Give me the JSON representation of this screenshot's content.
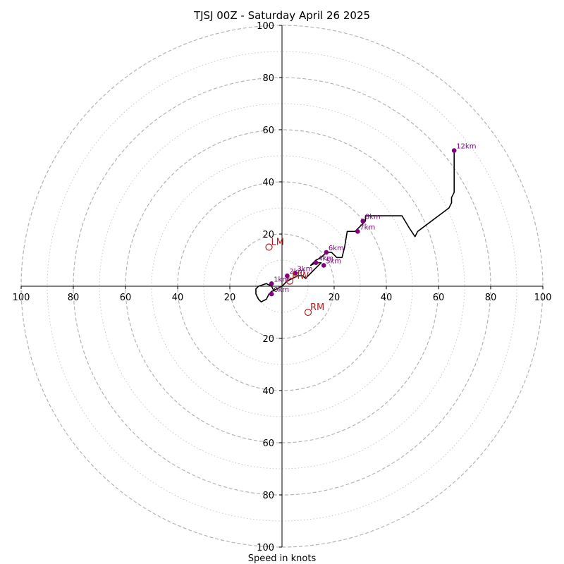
{
  "chart_data": {
    "type": "hodograph",
    "title": "TJSJ 00Z - Saturday April 26 2025",
    "xlabel": "Speed in knots",
    "ring_max": 100,
    "major_rings": [
      20,
      40,
      60,
      80,
      100
    ],
    "minor_rings": [
      10,
      30,
      50,
      70,
      90
    ],
    "tick_labels": {
      "x_left": [
        "100",
        "80",
        "60",
        "40",
        "20"
      ],
      "x_right": [
        "20",
        "40",
        "60",
        "80",
        "100"
      ],
      "y_up": [
        "20",
        "40",
        "60",
        "80",
        "100"
      ],
      "y_down": [
        "20",
        "40",
        "60",
        "80",
        "100"
      ]
    },
    "trace_color": "#000000",
    "height_marker_color": "#800080",
    "motion_marker_color": "#b22222",
    "trace": [
      [
        -3,
        -2
      ],
      [
        -4,
        0
      ],
      [
        -6,
        1
      ],
      [
        -9,
        0
      ],
      [
        -10,
        -1
      ],
      [
        -10,
        -3
      ],
      [
        -9,
        -5
      ],
      [
        -8,
        -6
      ],
      [
        -6,
        -5
      ],
      [
        -5,
        -3
      ],
      [
        -4,
        -2
      ],
      [
        -2,
        -1
      ],
      [
        0,
        0
      ],
      [
        2,
        2
      ],
      [
        4,
        3
      ],
      [
        6,
        4
      ],
      [
        8,
        4
      ],
      [
        9,
        3
      ],
      [
        11,
        5
      ],
      [
        13,
        7
      ],
      [
        14,
        8
      ],
      [
        15,
        9
      ],
      [
        13,
        9
      ],
      [
        11,
        8
      ],
      [
        13,
        10
      ],
      [
        15,
        11
      ],
      [
        17,
        13
      ],
      [
        19,
        13
      ],
      [
        21,
        11
      ],
      [
        23,
        11
      ],
      [
        24,
        15
      ],
      [
        25,
        21
      ],
      [
        28,
        21
      ],
      [
        30,
        23
      ],
      [
        32,
        25
      ],
      [
        32,
        27
      ],
      [
        34,
        27
      ],
      [
        38,
        27
      ],
      [
        42,
        27
      ],
      [
        46,
        27
      ],
      [
        49,
        22
      ],
      [
        51,
        19
      ],
      [
        52,
        21
      ],
      [
        56,
        24
      ],
      [
        60,
        27
      ],
      [
        64,
        30
      ],
      [
        65,
        32
      ],
      [
        65,
        34
      ],
      [
        66,
        36
      ],
      [
        66,
        37
      ],
      [
        66,
        40
      ],
      [
        66,
        43
      ],
      [
        66,
        46
      ],
      [
        66,
        52
      ]
    ],
    "height_points": [
      {
        "label": "0km",
        "u": -4,
        "v": -3
      },
      {
        "label": "1km",
        "u": -4,
        "v": 1
      },
      {
        "label": "2km",
        "u": 2,
        "v": 4
      },
      {
        "label": "3km",
        "u": 5,
        "v": 5
      },
      {
        "label": "4km",
        "u": 13,
        "v": 9
      },
      {
        "label": "5km",
        "u": 16,
        "v": 8
      },
      {
        "label": "6km",
        "u": 17,
        "v": 13
      },
      {
        "label": "7km",
        "u": 29,
        "v": 21
      },
      {
        "label": "8km",
        "u": 31,
        "v": 25
      },
      {
        "label": "12km",
        "u": 66,
        "v": 52
      }
    ],
    "storm_motion": [
      {
        "label": "LM",
        "u": -5,
        "v": 15
      },
      {
        "label": "MW",
        "u": 3,
        "v": 2
      },
      {
        "label": "RM",
        "u": 10,
        "v": -10
      }
    ]
  }
}
